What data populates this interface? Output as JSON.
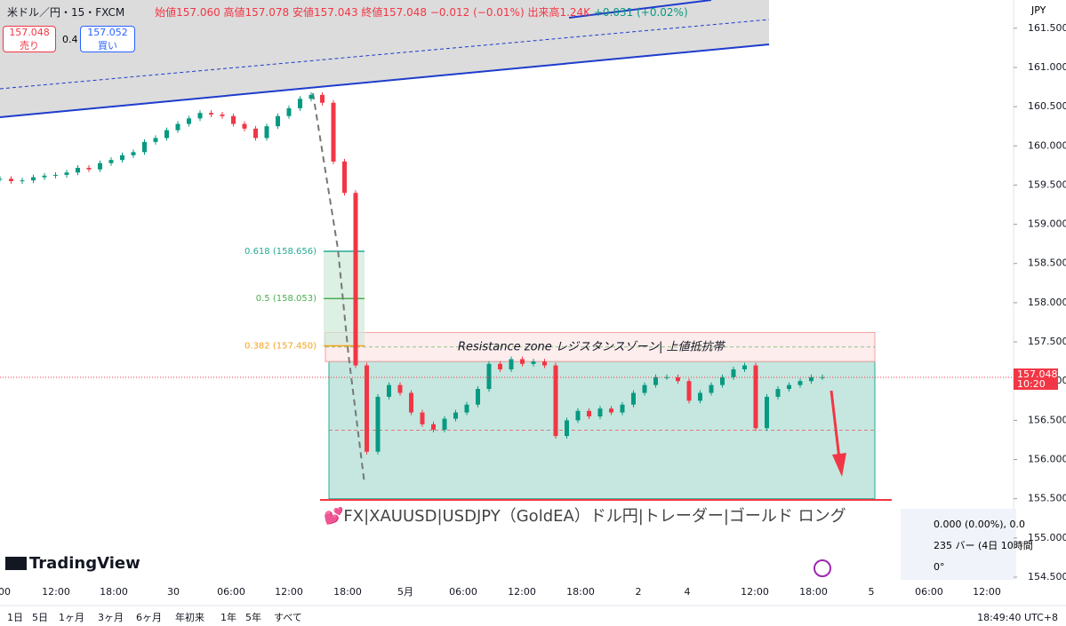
{
  "header": {
    "symbol": "米ドル／円・15・FXCM",
    "ohlc": "始値157.060 高値157.078 安値157.043 終値157.048",
    "change": "−0.012 (−0.01%)",
    "volume": "出来高1.24K",
    "volume_change": "+0.031 (+0.02%)"
  },
  "trade": {
    "sell_price": "157.048",
    "sell_label": "売り",
    "spread": "0.4",
    "buy_price": "157.052",
    "buy_label": "買い"
  },
  "chart_data": {
    "type": "candlestick",
    "closes": [
      159.58,
      159.55,
      159.56,
      159.6,
      159.62,
      159.63,
      159.66,
      159.72,
      159.7,
      159.78,
      159.82,
      159.88,
      159.92,
      160.05,
      160.1,
      160.2,
      160.28,
      160.35,
      160.42,
      160.4,
      160.38,
      160.28,
      160.22,
      160.1,
      160.25,
      160.38,
      160.48,
      160.6,
      160.65,
      160.55,
      159.8,
      159.4,
      157.2,
      156.1,
      156.8,
      156.95,
      156.85,
      156.6,
      156.45,
      156.38,
      156.52,
      156.6,
      156.7,
      156.9,
      157.22,
      157.15,
      157.28,
      157.22,
      157.25,
      157.2,
      156.3,
      156.5,
      156.62,
      156.55,
      156.65,
      156.6,
      156.7,
      156.85,
      156.95,
      157.05,
      157.05,
      157.0,
      156.75,
      156.85,
      156.95,
      157.05,
      157.15,
      157.2,
      156.4,
      156.8,
      156.9,
      156.95,
      157.0,
      157.05,
      157.05
    ],
    "ylim": [
      154.5,
      161.86
    ],
    "yticks": [
      {
        "value": 161.5,
        "label": "161.500"
      },
      {
        "value": 161,
        "label": "161.000"
      },
      {
        "value": 160.5,
        "label": "160.500"
      },
      {
        "value": 160,
        "label": "160.000"
      },
      {
        "value": 159.5,
        "label": "159.500"
      },
      {
        "value": 159,
        "label": "159.000"
      },
      {
        "value": 158.5,
        "label": "158.500"
      },
      {
        "value": 158,
        "label": "158.000"
      },
      {
        "value": 157.5,
        "label": "157.500"
      },
      {
        "value": 157,
        "label": "157.000"
      },
      {
        "value": 156.5,
        "label": "156.500"
      },
      {
        "value": 156,
        "label": "156.000"
      },
      {
        "value": 155.5,
        "label": "155.500"
      },
      {
        "value": 155,
        "label": "155.000"
      },
      {
        "value": 154.5,
        "label": "154.500"
      }
    ],
    "currency": "JPY",
    "last_price": {
      "value": 157.048,
      "label": "157.048"
    },
    "countdown": "10:20",
    "fib_levels": [
      {
        "value": 158.656,
        "label": "0.618 (158.656)",
        "color": "#22ab94"
      },
      {
        "value": 158.053,
        "label": "0.5 (158.053)",
        "color": "#4caf50"
      },
      {
        "value": 157.45,
        "label": "0.382 (157.450)",
        "color": "#f7a21b"
      }
    ],
    "resistance_zone_label": "Resistance zone レジスタンスゾーン| 上値抵抗帯",
    "resistance_zone": [
      157.25,
      157.62
    ],
    "range_box": [
      155.5,
      157.25
    ],
    "colors": {
      "up": "#089981",
      "down": "#f23645"
    }
  },
  "time_axis": [
    "00",
    "12:00",
    "18:00",
    "30",
    "06:00",
    "12:00",
    "18:00",
    "5月",
    "06:00",
    "12:00",
    "18:00",
    "2",
    "4",
    "12:00",
    "18:00",
    "5",
    "06:00",
    "12:00"
  ],
  "banner": "💕FX|XAUUSD|USDJPY（GoldEA）ドル円|トレーダー|ゴールド ロング",
  "logo": "TradingView",
  "measure": [
    "0.000 (0.00%), 0.0",
    "235 バー (4日 10時間",
    "0°"
  ],
  "toolbar": {
    "ranges": [
      "1日",
      "5日",
      "1ヶ月",
      "3ヶ月",
      "6ヶ月",
      "年初来",
      "1年",
      "5年",
      "すべて"
    ],
    "clock": "18:49:40 UTC+8"
  }
}
